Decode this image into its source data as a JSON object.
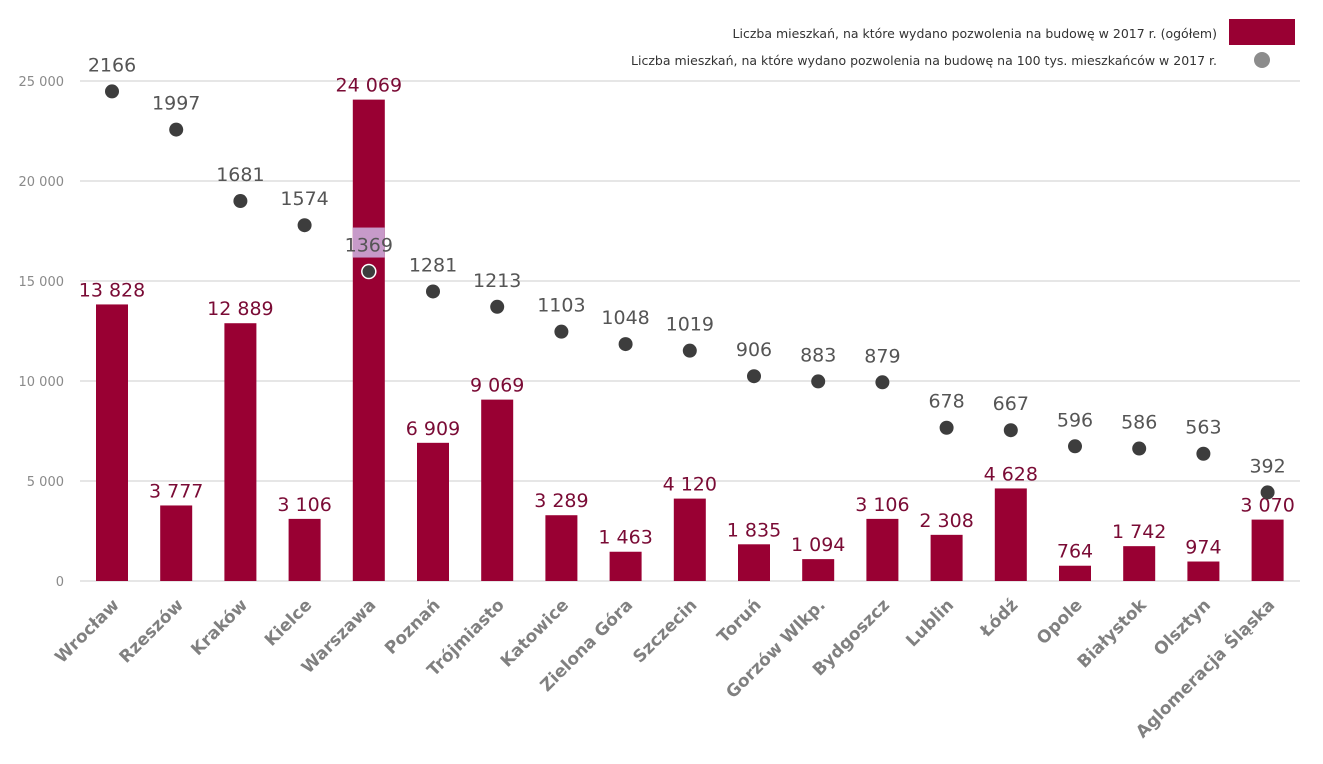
{
  "chart_data": {
    "type": "bar",
    "title": "",
    "xlabel": "",
    "ylabel": "",
    "ylim": [
      0,
      25000
    ],
    "yticks": [
      0,
      5000,
      10000,
      15000,
      20000,
      25000
    ],
    "ytick_labels": [
      "0",
      "5 000",
      "10 000",
      "15 000",
      "20 000",
      "25 000"
    ],
    "grid": true,
    "legend_position": "top-right",
    "categories": [
      "Wrocław",
      "Rzeszów",
      "Kraków",
      "Kielce",
      "Warszawa",
      "Poznań",
      "Trójmiasto",
      "Katowice",
      "Zielona Góra",
      "Szczecin",
      "Toruń",
      "Gorzów Wlkp.",
      "Bydgoszcz",
      "Lublin",
      "Łódź",
      "Opole",
      "Białystok",
      "Olsztyn",
      "Aglomeracja Śląska"
    ],
    "series": [
      {
        "name": "Liczba mieszkań, na które wydano pozwolenia na budowę w 2017 r. (ogółem)",
        "type": "bar",
        "color": "#990033",
        "values": [
          13828,
          3777,
          12889,
          3106,
          24069,
          6909,
          9069,
          3289,
          1463,
          4120,
          1835,
          1094,
          3106,
          2308,
          4628,
          764,
          1742,
          974,
          3070
        ],
        "labels": [
          "13 828",
          "3 777",
          "12 889",
          "3 106",
          "24 069",
          "6 909",
          "9 069",
          "3 289",
          "1 463",
          "4 120",
          "1 835",
          "1 094",
          "3 106",
          "2 308",
          "4 628",
          "764",
          "1 742",
          "974",
          "3 070"
        ]
      },
      {
        "name": "Liczba mieszkań, na które wydano pozwolenia na budowę na 100 tys. mieszkańców w 2017 r.",
        "type": "scatter",
        "color": "#3d3d3d",
        "legend_color": "#8c8c8c",
        "secondary_axis_range": [
          0,
          2400
        ],
        "values": [
          2166,
          1997,
          1681,
          1574,
          1369,
          1281,
          1213,
          1103,
          1048,
          1019,
          906,
          883,
          879,
          678,
          667,
          596,
          586,
          563,
          392
        ],
        "labels": [
          "2166",
          "1997",
          "1681",
          "1574",
          "1369",
          "1281",
          "1213",
          "1103",
          "1048",
          "1019",
          "906",
          "883",
          "879",
          "678",
          "667",
          "596",
          "586",
          "563",
          "392"
        ]
      }
    ],
    "highlighted_category": "Warszawa",
    "highlight_color": "#c79ac9"
  }
}
